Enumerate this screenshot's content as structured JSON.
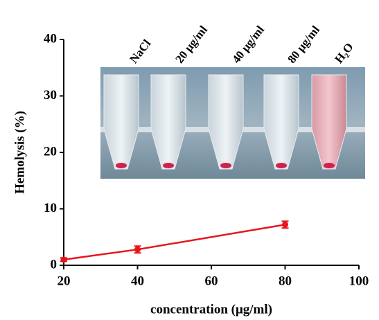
{
  "chart_data": {
    "type": "line",
    "x_label": "concentration (μg/ml)",
    "y_label": "Hemolysis (%)",
    "x": [
      20,
      40,
      80
    ],
    "series": [
      {
        "color": "#e8141c",
        "values": [
          1.0,
          2.8,
          7.2
        ],
        "errors": [
          0.3,
          0.6,
          0.6
        ]
      }
    ],
    "xlim": [
      20,
      100
    ],
    "xticks": [
      20,
      40,
      60,
      80,
      100
    ],
    "ylim": [
      0,
      40
    ],
    "yticks": [
      0,
      10,
      20,
      30,
      40
    ],
    "grid": false,
    "inset_labels": [
      "NaCl",
      "20 μg/ml",
      "40 μg/ml",
      "80 μg/ml",
      "H₂O"
    ]
  }
}
